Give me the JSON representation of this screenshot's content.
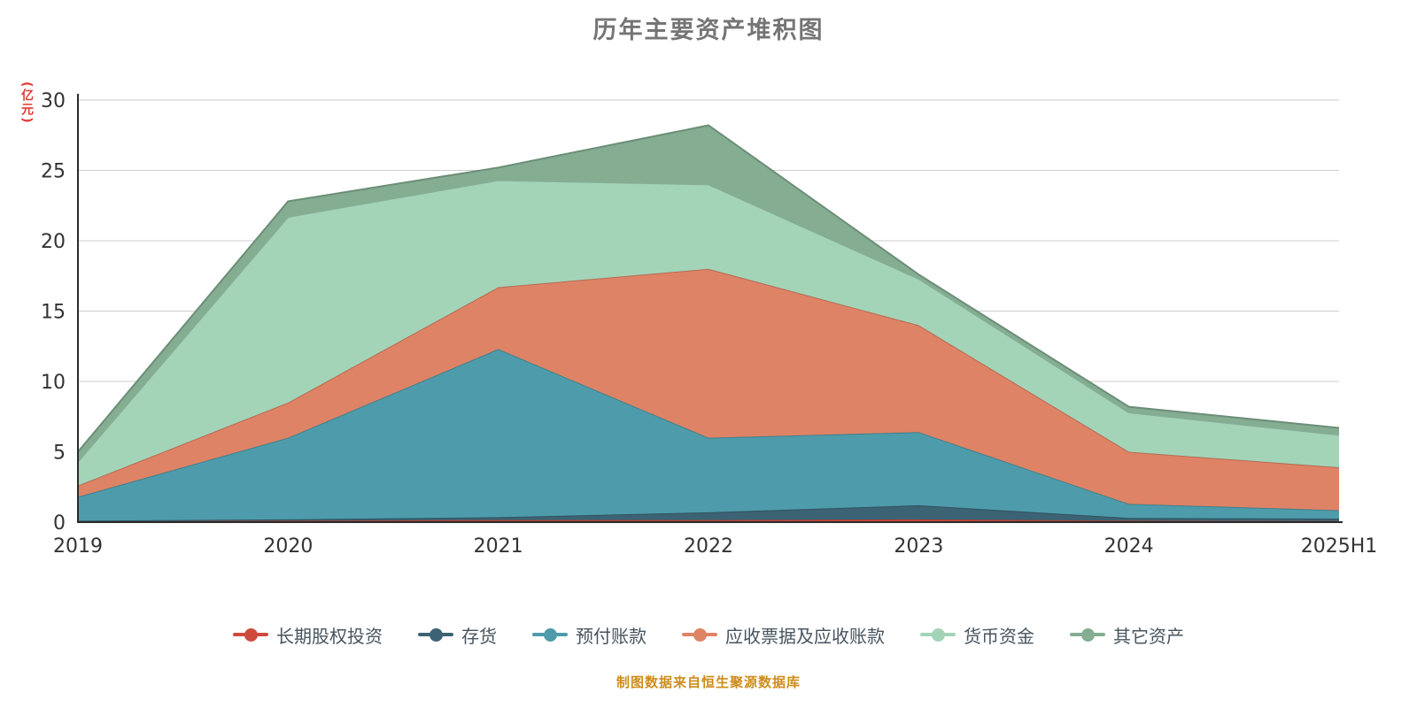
{
  "chart_data": {
    "type": "area",
    "stacked": true,
    "title": "历年主要资产堆积图",
    "unit_label": "(亿元)",
    "source_note": "制图数据来自恒生聚源数据库",
    "categories": [
      "2019",
      "2020",
      "2021",
      "2022",
      "2023",
      "2024",
      "2025H1"
    ],
    "ylim": [
      0,
      30
    ],
    "yticks": [
      0,
      5,
      10,
      15,
      20,
      25,
      30
    ],
    "grid": true,
    "legend_position": "bottom",
    "series": [
      {
        "id": "long-term-equity-investment",
        "name": "长期股权投资",
        "color": "#cf4a3c",
        "values": [
          0.05,
          0.1,
          0.15,
          0.15,
          0.2,
          0.1,
          0.08
        ]
      },
      {
        "id": "inventory",
        "name": "存货",
        "color": "#3c6374",
        "values": [
          0.05,
          0.1,
          0.2,
          0.55,
          1.0,
          0.2,
          0.17
        ]
      },
      {
        "id": "prepayments",
        "name": "预付账款",
        "color": "#4e9cab",
        "values": [
          1.7,
          5.8,
          11.95,
          5.3,
          5.2,
          1.0,
          0.6
        ]
      },
      {
        "id": "notes-and-accounts-receivable",
        "name": "应收票据及应收账款",
        "color": "#de8366",
        "values": [
          0.8,
          2.5,
          4.4,
          12.0,
          7.6,
          3.7,
          3.05
        ]
      },
      {
        "id": "monetary-funds",
        "name": "货币资金",
        "color": "#a3d4b8",
        "values": [
          1.7,
          13.2,
          7.6,
          6.0,
          3.3,
          2.8,
          2.3
        ]
      },
      {
        "id": "other-assets",
        "name": "其它资产",
        "color": "#84ad92",
        "values": [
          0.7,
          1.1,
          0.9,
          4.2,
          0.3,
          0.4,
          0.5
        ]
      }
    ],
    "axis_color": "#2b2b2b",
    "grid_color": "#cccccc",
    "tick_label_color": "#333333"
  }
}
